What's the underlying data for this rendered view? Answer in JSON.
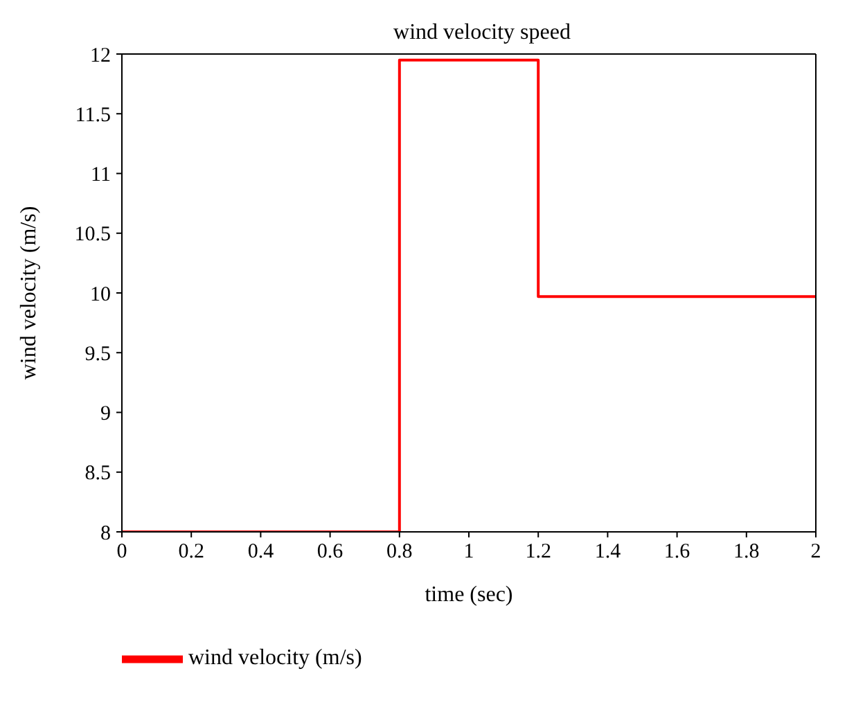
{
  "chart_data": {
    "type": "step",
    "title": "wind velocity speed",
    "xlabel": "time (sec)",
    "ylabel": "wind velocity (m/s)",
    "x": [
      0,
      0.8,
      1.2,
      2
    ],
    "series": [
      {
        "name": "wind velocity (m/s)",
        "color": "#ff0000",
        "values": [
          8,
          11.95,
          9.97,
          9.97
        ]
      }
    ],
    "xlim": [
      0,
      2
    ],
    "xticks": [
      0,
      0.2,
      0.4,
      0.6,
      0.8,
      1,
      1.2,
      1.4,
      1.6,
      1.8,
      2
    ],
    "ylim": [
      8,
      12
    ],
    "yticks": [
      8,
      8.5,
      9,
      9.5,
      10,
      10.5,
      11,
      11.5,
      12
    ],
    "grid": false,
    "legend": "bottom left"
  }
}
